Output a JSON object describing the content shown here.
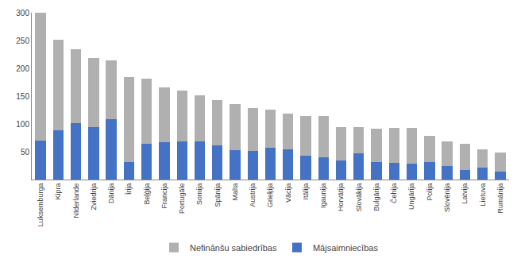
{
  "chart_data": {
    "type": "bar",
    "categories": [
      "Luksemburga",
      "Kipra",
      "Nīderlande",
      "Zviedrija",
      "Dānija",
      "Īrija",
      "Beļģija",
      "Francija",
      "Portugāle",
      "Somija",
      "Spānija",
      "Malta",
      "Austrija",
      "Grieķija",
      "Vācija",
      "Itālija",
      "Igaunija",
      "Horvātija",
      "Slovākija",
      "Bulgārija",
      "Čehija",
      "Ungārija",
      "Polija",
      "Slovēnija",
      "Latvija",
      "Lietuva",
      "Rumānija"
    ],
    "series": [
      {
        "name": "Mājsaimniecības",
        "color": "#4472c4",
        "values": [
          70,
          88,
          102,
          95,
          108,
          31,
          65,
          67,
          68,
          69,
          61,
          53,
          51,
          57,
          55,
          43,
          40,
          35,
          47,
          32,
          30,
          28,
          32,
          25,
          17,
          22,
          15
        ]
      },
      {
        "name": "Nefinānšu sabiedrības",
        "color": "#b0b0b0",
        "values": [
          230,
          163,
          133,
          124,
          107,
          154,
          116,
          99,
          92,
          83,
          82,
          83,
          77,
          69,
          63,
          71,
          75,
          60,
          48,
          60,
          63,
          65,
          47,
          43,
          47,
          33,
          33
        ]
      }
    ],
    "stacked": true,
    "ylim": [
      0,
      300
    ],
    "yticks": [
      50,
      100,
      150,
      200,
      250,
      300
    ],
    "grid": false,
    "legend": "bottom"
  }
}
